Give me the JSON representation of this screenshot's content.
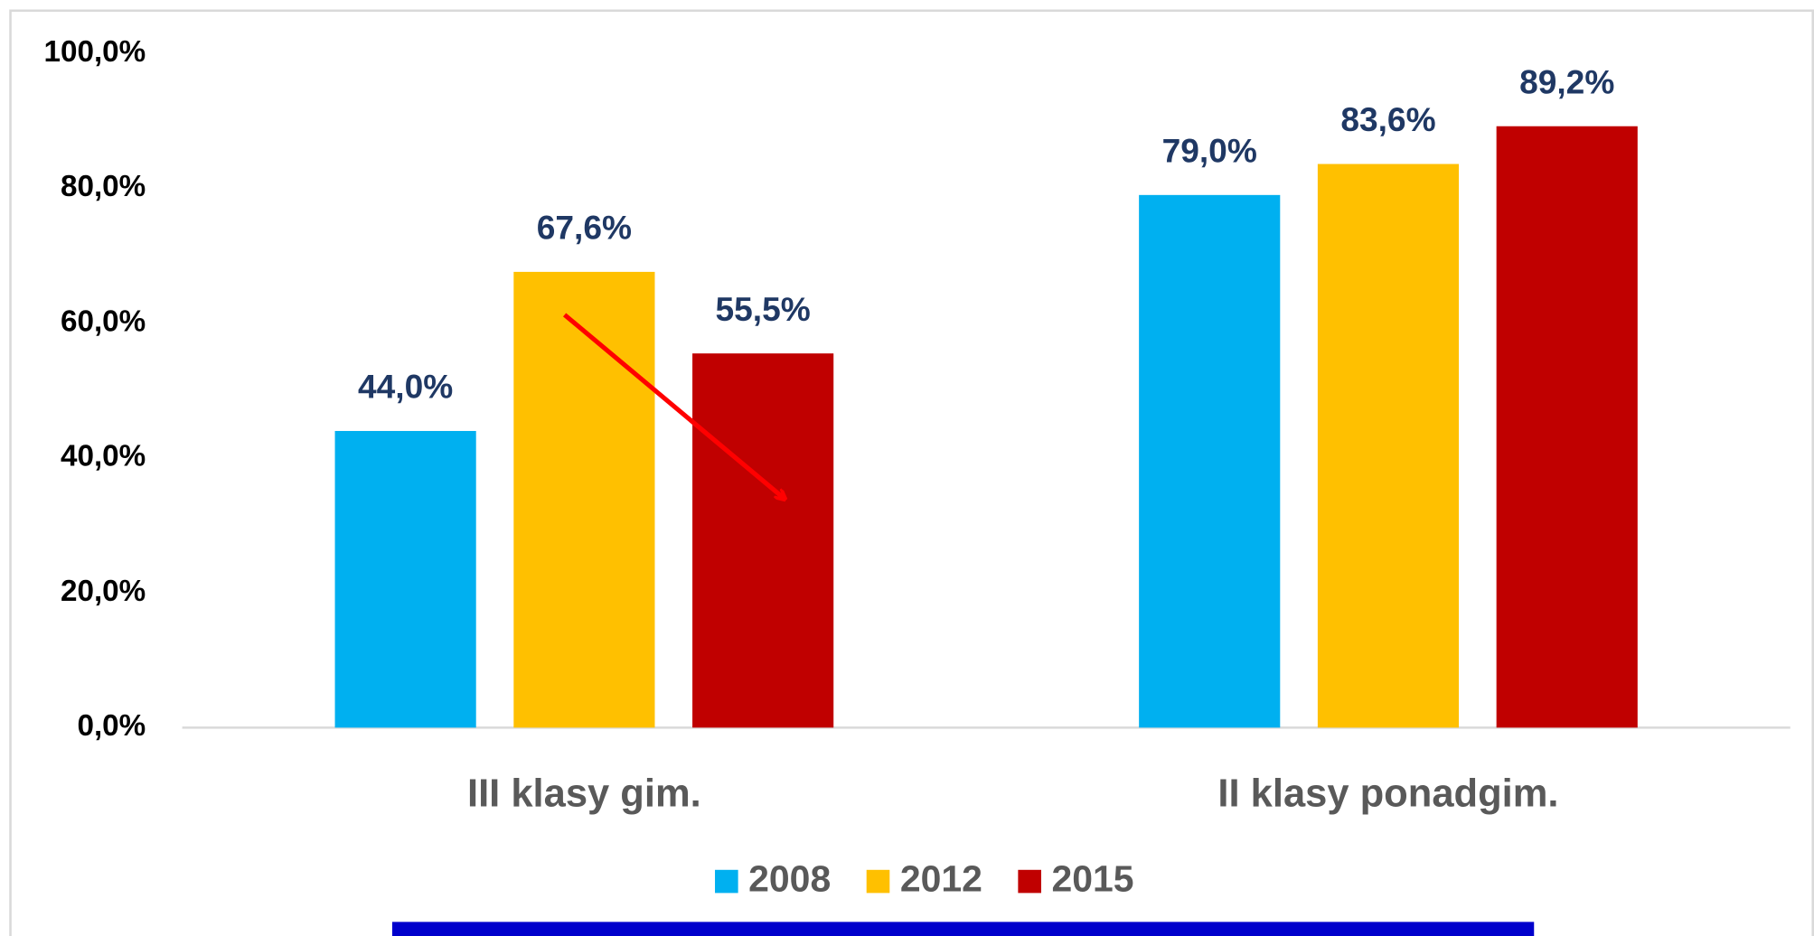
{
  "chart_data": {
    "type": "bar",
    "categories": [
      "III klasy gim.",
      "II klasy ponadgim."
    ],
    "series": [
      {
        "name": "2008",
        "color": "#00b0f0",
        "values": [
          44.0,
          79.0
        ],
        "value_labels": [
          "44,0%",
          "79,0%"
        ]
      },
      {
        "name": "2012",
        "color": "#ffc000",
        "values": [
          67.6,
          83.6
        ],
        "value_labels": [
          "67,6%",
          "83,6%"
        ]
      },
      {
        "name": "2015",
        "color": "#c00000",
        "values": [
          55.5,
          89.2
        ],
        "value_labels": [
          "55,5%",
          "89,2%"
        ]
      }
    ],
    "ylim": [
      0,
      100
    ],
    "yticks": [
      {
        "value": 0,
        "label": "0,0%"
      },
      {
        "value": 20,
        "label": "20,0%"
      },
      {
        "value": 40,
        "label": "40,0%"
      },
      {
        "value": 60,
        "label": "60,0%"
      },
      {
        "value": 80,
        "label": "80,0%"
      },
      {
        "value": 100,
        "label": "100,0%"
      }
    ],
    "grid": false,
    "legend": "bottom"
  }
}
